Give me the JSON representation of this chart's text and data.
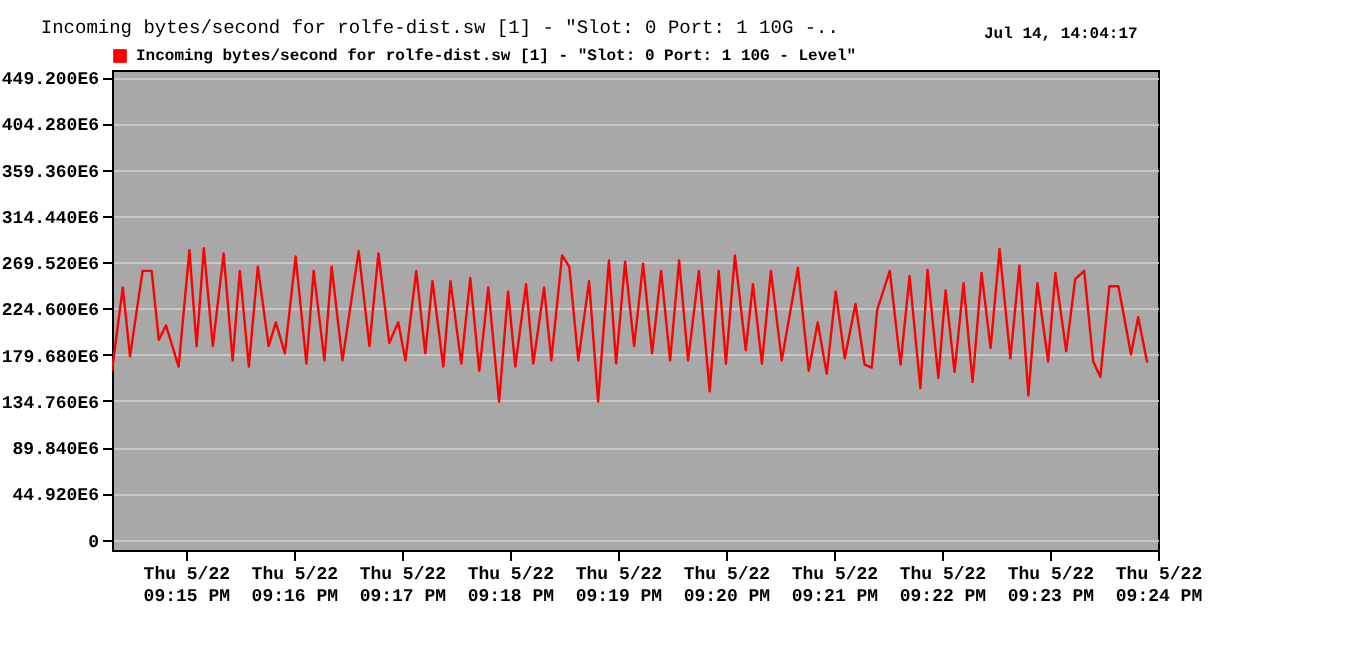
{
  "chart_data": {
    "type": "line",
    "title": "Incoming bytes/second for rolfe-dist.sw [1] - \"Slot: 0 Port: 1 10G -..",
    "annotations": [
      "Jul 14, 14:04:17"
    ],
    "x": [
      "--05-22T21:14:19",
      "--05-22T21:14:25",
      "--05-22T21:14:29",
      "--05-22T21:14:36",
      "--05-22T21:14:41",
      "--05-22T21:14:45",
      "--05-22T21:14:49",
      "--05-22T21:14:56",
      "--05-22T21:15:02",
      "--05-22T21:15:06",
      "--05-22T21:15:10",
      "--05-22T21:15:15",
      "--05-22T21:15:21",
      "--05-22T21:15:26",
      "--05-22T21:15:30",
      "--05-22T21:15:35",
      "--05-22T21:15:40",
      "--05-22T21:15:46",
      "--05-22T21:15:50",
      "--05-22T21:15:55",
      "--05-22T21:16:01",
      "--05-22T21:16:07",
      "--05-22T21:16:11",
      "--05-22T21:16:17",
      "--05-22T21:16:21",
      "--05-22T21:16:27",
      "--05-22T21:16:36",
      "--05-22T21:16:42",
      "--05-22T21:16:47",
      "--05-22T21:16:53",
      "--05-22T21:16:58",
      "--05-22T21:17:02",
      "--05-22T21:17:08",
      "--05-22T21:17:13",
      "--05-22T21:17:17",
      "--05-22T21:17:23",
      "--05-22T21:17:27",
      "--05-22T21:17:33",
      "--05-22T21:17:38",
      "--05-22T21:17:43",
      "--05-22T21:17:46",
      "--05-22T21:17:48",
      "--05-22T21:17:54",
      "--05-22T21:17:59",
      "--05-22T21:18:03",
      "--05-22T21:18:09",
      "--05-22T21:18:13",
      "--05-22T21:18:19",
      "--05-22T21:18:23",
      "--05-22T21:18:29",
      "--05-22T21:18:33",
      "--05-22T21:18:38",
      "--05-22T21:18:44",
      "--05-22T21:18:49",
      "--05-22T21:18:55",
      "--05-22T21:18:59",
      "--05-22T21:19:04",
      "--05-22T21:19:09",
      "--05-22T21:19:14",
      "--05-22T21:19:19",
      "--05-22T21:19:24",
      "--05-22T21:19:29",
      "--05-22T21:19:34",
      "--05-22T21:19:39",
      "--05-22T21:19:45",
      "--05-22T21:19:51",
      "--05-22T21:19:56",
      "--05-22T21:20:00",
      "--05-22T21:20:05",
      "--05-22T21:20:11",
      "--05-22T21:20:15",
      "--05-22T21:20:20",
      "--05-22T21:20:25",
      "--05-22T21:20:31",
      "--05-22T21:20:40",
      "--05-22T21:20:46",
      "--05-22T21:20:51",
      "--05-22T21:20:56",
      "--05-22T21:21:01",
      "--05-22T21:21:06",
      "--05-22T21:21:12",
      "--05-22T21:21:17",
      "--05-22T21:21:21",
      "--05-22T21:21:24",
      "--05-22T21:21:31",
      "--05-22T21:21:37",
      "--05-22T21:21:42",
      "--05-22T21:21:48",
      "--05-22T21:21:52",
      "--05-22T21:21:58",
      "--05-22T21:22:02",
      "--05-22T21:22:07",
      "--05-22T21:22:12",
      "--05-22T21:22:17",
      "--05-22T21:22:22",
      "--05-22T21:22:27",
      "--05-22T21:22:32",
      "--05-22T21:22:38",
      "--05-22T21:22:43",
      "--05-22T21:22:48",
      "--05-22T21:22:53",
      "--05-22T21:22:59",
      "--05-22T21:23:03",
      "--05-22T21:23:09",
      "--05-22T21:23:14",
      "--05-22T21:23:19",
      "--05-22T21:23:24",
      "--05-22T21:23:28",
      "--05-22T21:23:33",
      "--05-22T21:23:38",
      "--05-22T21:23:45",
      "--05-22T21:23:49",
      "--05-22T21:23:54"
    ],
    "series": [
      {
        "name": "Incoming bytes/second for rolfe-dist.sw [1] - \"Slot: 0 Port: 1 10G - Level\"",
        "color": "#ff0000",
        "values": [
          164000000,
          245000000,
          178000000,
          261000000,
          261000000,
          194000000,
          208000000,
          168000000,
          281000000,
          188000000,
          283000000,
          188000000,
          278000000,
          174000000,
          261000000,
          168000000,
          265000000,
          188000000,
          211000000,
          181000000,
          275000000,
          171000000,
          261000000,
          174000000,
          265000000,
          174000000,
          280000000,
          188000000,
          278000000,
          191000000,
          211000000,
          174000000,
          261000000,
          181000000,
          251000000,
          168000000,
          251000000,
          171000000,
          254000000,
          164000000,
          211000000,
          245000000,
          134000000,
          241000000,
          168000000,
          248000000,
          171000000,
          245000000,
          174000000,
          276000000,
          265000000,
          174000000,
          251000000,
          134000000,
          271000000,
          171000000,
          270000000,
          188000000,
          268000000,
          181000000,
          261000000,
          174000000,
          271000000,
          174000000,
          261000000,
          144000000,
          261000000,
          171000000,
          276000000,
          184000000,
          248000000,
          171000000,
          261000000,
          174000000,
          264000000,
          164000000,
          211000000,
          161000000,
          241000000,
          176000000,
          229000000,
          170000000,
          167000000,
          223000000,
          261000000,
          170000000,
          256000000,
          147000000,
          262000000,
          157000000,
          242000000,
          163000000,
          249000000,
          153000000,
          259000000,
          186000000,
          282000000,
          176000000,
          266000000,
          140000000,
          249000000,
          173000000,
          259000000,
          183000000,
          253000000,
          261000000,
          173000000,
          158000000,
          246000000,
          246000000,
          180000000,
          216000000,
          172000000
        ]
      }
    ],
    "xlim": [
      "--05-22T21:14:19",
      "--05-22T21:24:00"
    ],
    "xticks": [
      {
        "value": "--05-22T21:15",
        "label": "Thu 5/22\n09:15 PM"
      },
      {
        "value": "--05-22T21:16",
        "label": "Thu 5/22\n09:16 PM"
      },
      {
        "value": "--05-22T21:17",
        "label": "Thu 5/22\n09:17 PM"
      },
      {
        "value": "--05-22T21:18",
        "label": "Thu 5/22\n09:18 PM"
      },
      {
        "value": "--05-22T21:19",
        "label": "Thu 5/22\n09:19 PM"
      },
      {
        "value": "--05-22T21:20",
        "label": "Thu 5/22\n09:20 PM"
      },
      {
        "value": "--05-22T21:21",
        "label": "Thu 5/22\n09:21 PM"
      },
      {
        "value": "--05-22T21:22",
        "label": "Thu 5/22\n09:22 PM"
      },
      {
        "value": "--05-22T21:23",
        "label": "Thu 5/22\n09:23 PM"
      },
      {
        "value": "--05-22T21:24",
        "label": "Thu 5/22\n09:24 PM"
      }
    ],
    "ylim": [
      -10000000,
      456000000
    ],
    "yticks": [
      {
        "value": 0,
        "label": "0"
      },
      {
        "value": 44920000,
        "label": "44.920E6"
      },
      {
        "value": 89840000,
        "label": "89.840E6"
      },
      {
        "value": 134760000,
        "label": "134.760E6"
      },
      {
        "value": 179680000,
        "label": "179.680E6"
      },
      {
        "value": 224600000,
        "label": "224.600E6"
      },
      {
        "value": 269520000,
        "label": "269.520E6"
      },
      {
        "value": 314440000,
        "label": "314.440E6"
      },
      {
        "value": 359360000,
        "label": "359.360E6"
      },
      {
        "value": 404280000,
        "label": "404.280E6"
      },
      {
        "value": 449200000,
        "label": "449.200E6"
      }
    ],
    "grid": "y",
    "legend": "top left",
    "marker": "none"
  }
}
